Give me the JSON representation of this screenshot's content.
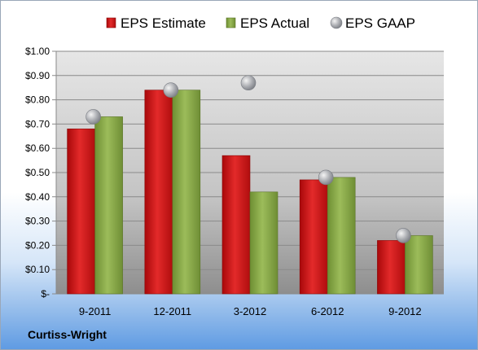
{
  "company": "Curtiss-Wright",
  "colors": {
    "estimate": "#d0191a",
    "actual": "#8aab4a",
    "gaap": "#a8aab0"
  },
  "chart_data": {
    "type": "bar",
    "categories": [
      "9-2011",
      "12-2011",
      "3-2012",
      "6-2012",
      "9-2012"
    ],
    "series": [
      {
        "name": "EPS Estimate",
        "kind": "bar",
        "values": [
          0.68,
          0.84,
          0.57,
          0.47,
          0.22
        ]
      },
      {
        "name": "EPS Actual",
        "kind": "bar",
        "values": [
          0.73,
          0.84,
          0.42,
          0.48,
          0.24
        ]
      },
      {
        "name": "EPS GAAP",
        "kind": "scatter",
        "values": [
          0.73,
          0.84,
          0.87,
          0.48,
          0.24
        ]
      }
    ],
    "ylim": [
      0,
      1.0
    ],
    "yticks": [
      0,
      0.1,
      0.2,
      0.3,
      0.4,
      0.5,
      0.6,
      0.7,
      0.8,
      0.9,
      1.0
    ],
    "ytick_labels": [
      "$-",
      "$0.10",
      "$0.20",
      "$0.30",
      "$0.40",
      "$0.50",
      "$0.60",
      "$0.70",
      "$0.80",
      "$0.90",
      "$1.00"
    ],
    "grid": true,
    "legend": "top"
  }
}
